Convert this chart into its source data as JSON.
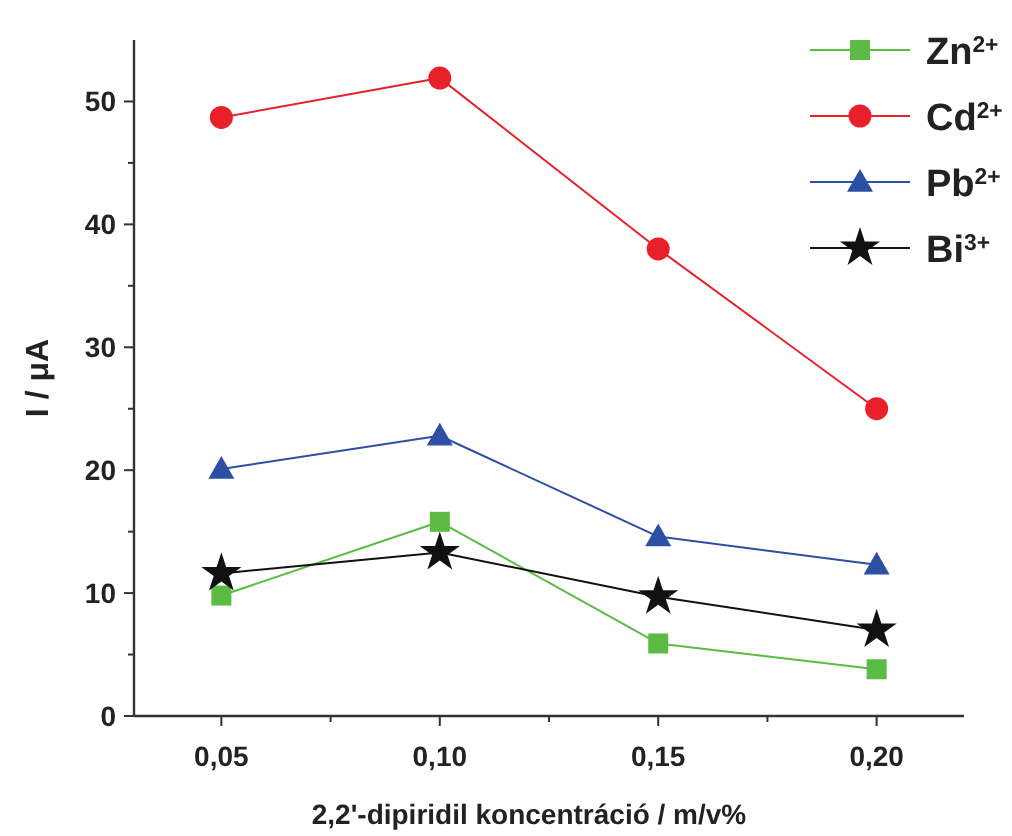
{
  "chart_data": {
    "type": "line",
    "xlabel": "2,2'-dipiridil koncentráció / m/v%",
    "ylabel": "I / μA",
    "x": [
      0.05,
      0.1,
      0.15,
      0.2
    ],
    "xlim": [
      0.03,
      0.22
    ],
    "xticks": [
      {
        "value": 0.05,
        "label": "0,05"
      },
      {
        "value": 0.075,
        "label": null
      },
      {
        "value": 0.1,
        "label": "0,10"
      },
      {
        "value": 0.125,
        "label": null
      },
      {
        "value": 0.15,
        "label": "0,15"
      },
      {
        "value": 0.175,
        "label": null
      },
      {
        "value": 0.2,
        "label": "0,20"
      }
    ],
    "ylim": [
      0,
      55
    ],
    "yticks": [
      0,
      {
        "value": 5,
        "label": null
      },
      10,
      {
        "value": 15,
        "label": null
      },
      20,
      {
        "value": 25,
        "label": null
      },
      30,
      {
        "value": 35,
        "label": null
      },
      40,
      {
        "value": 45,
        "label": null
      },
      50
    ],
    "legend": "top right",
    "grid": false,
    "line_style": "solid",
    "series": [
      {
        "name": "Zn$^{2+}$",
        "color": "#5cbb45",
        "marker": "square",
        "values": [
          9.8,
          15.8,
          5.9,
          3.8
        ]
      },
      {
        "name": "Cd$^{2+}$",
        "color": "#e8202a",
        "marker": "circle",
        "values": [
          48.7,
          51.9,
          38,
          25
        ]
      },
      {
        "name": "Pb$^{2+}$",
        "color": "#2d4fa3",
        "marker": "triangle",
        "values": [
          20.1,
          22.8,
          14.6,
          12.3
        ]
      },
      {
        "name": "Bi$^{3+}$",
        "color": "#111111",
        "marker": "star",
        "values": [
          11.6,
          13.3,
          9.7,
          7.0
        ]
      }
    ]
  }
}
